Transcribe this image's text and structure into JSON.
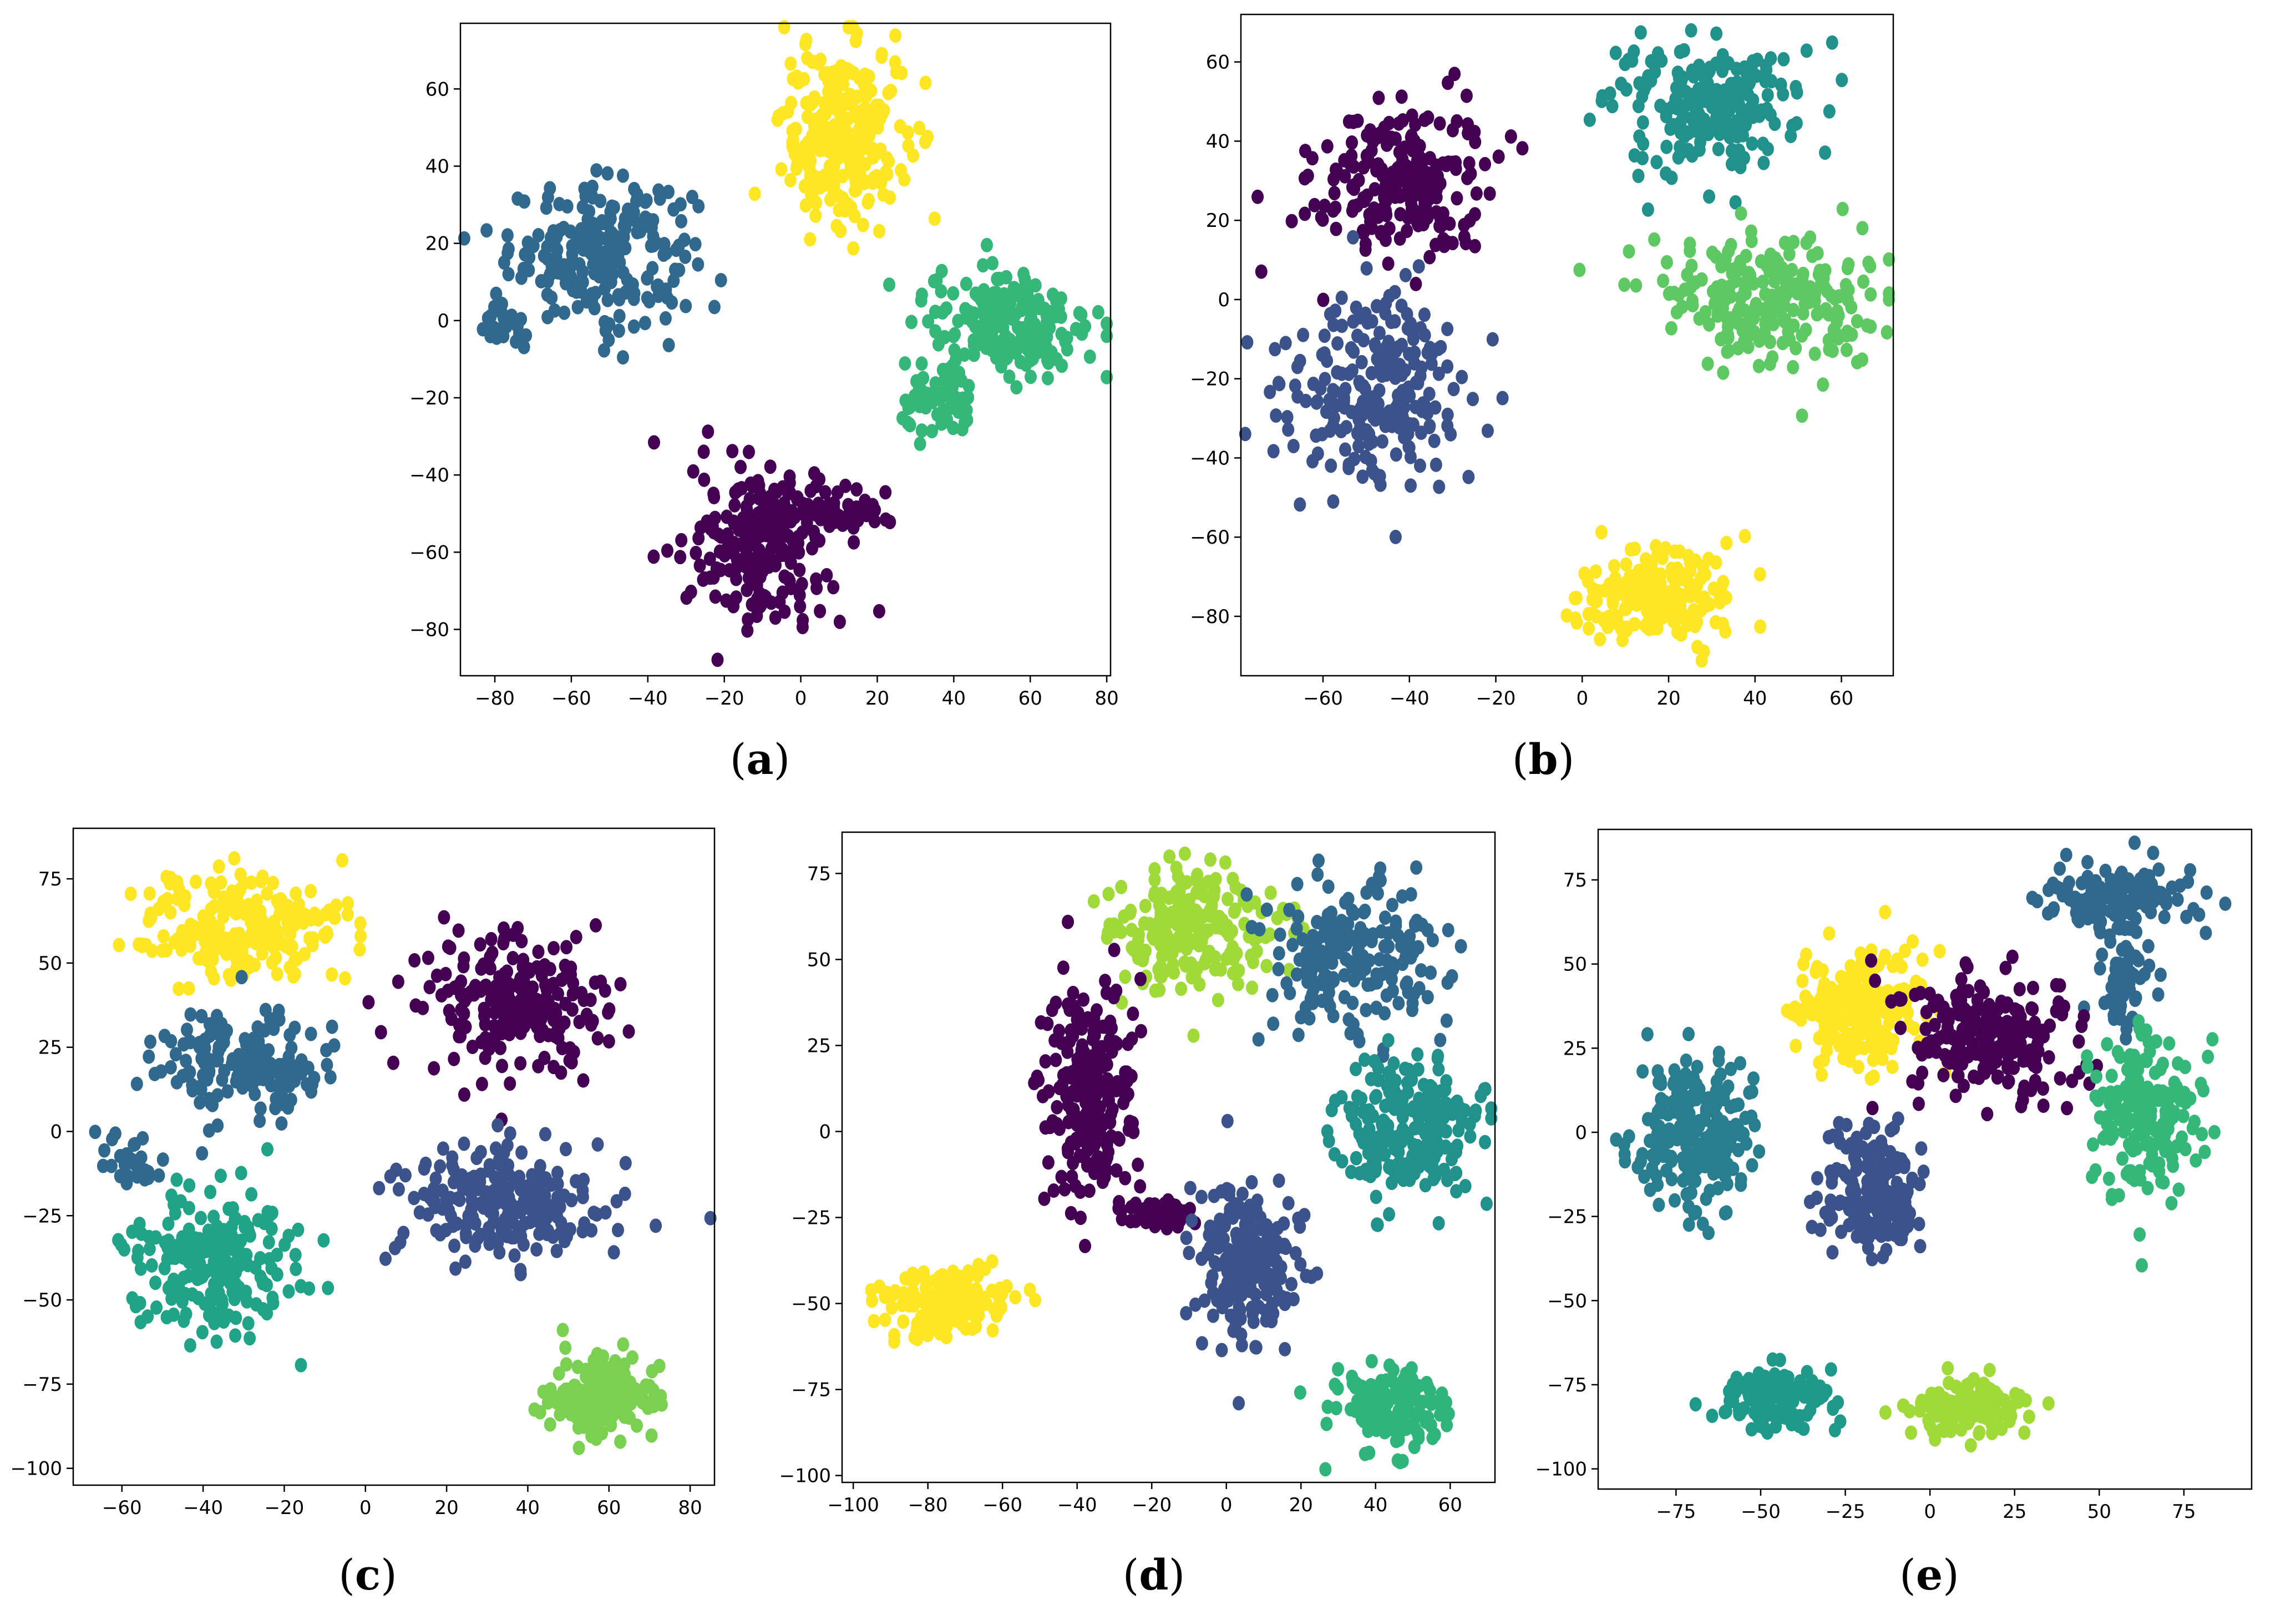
{
  "chart_data": [
    {
      "type": "scatter",
      "panel": "a",
      "caption": {
        "open": "(",
        "letter": "a",
        "close": ")"
      },
      "xlim": [
        -89,
        81
      ],
      "ylim": [
        -92,
        77
      ],
      "xticks": [
        -80,
        -60,
        -40,
        -20,
        0,
        20,
        40,
        60,
        80
      ],
      "yticks": [
        -80,
        -60,
        -40,
        -20,
        0,
        20,
        40,
        60
      ],
      "clusters": [
        {
          "label": "dark-teal",
          "color": "#31688e",
          "center": [
            -52,
            18
          ],
          "spread": [
            12,
            9
          ],
          "n": 230
        },
        {
          "label": "dark-teal-tail",
          "color": "#31688e",
          "center": [
            -78,
            -2
          ],
          "spread": [
            3,
            3
          ],
          "n": 25
        },
        {
          "label": "yellow",
          "color": "#fde725",
          "center": [
            11,
            48
          ],
          "spread": [
            8,
            12
          ],
          "n": 260
        },
        {
          "label": "green",
          "color": "#35b779",
          "center": [
            55,
            0
          ],
          "spread": [
            11,
            7
          ],
          "n": 200
        },
        {
          "label": "green-lower",
          "color": "#35b779",
          "center": [
            36,
            -22
          ],
          "spread": [
            5,
            5
          ],
          "n": 70
        },
        {
          "label": "purple",
          "color": "#440154",
          "center": [
            -10,
            -58
          ],
          "spread": [
            9,
            10
          ],
          "n": 230
        },
        {
          "label": "purple-arm",
          "color": "#440154",
          "center": [
            12,
            -49
          ],
          "spread": [
            6,
            3
          ],
          "n": 50
        }
      ]
    },
    {
      "type": "scatter",
      "panel": "b",
      "caption": {
        "open": "(",
        "letter": "b",
        "close": ")"
      },
      "xlim": [
        -79,
        72
      ],
      "ylim": [
        -95,
        72
      ],
      "xticks": [
        -60,
        -40,
        -20,
        0,
        20,
        40,
        60
      ],
      "yticks": [
        -80,
        -60,
        -40,
        -20,
        0,
        20,
        40,
        60
      ],
      "clusters": [
        {
          "label": "purple",
          "color": "#440154",
          "center": [
            -42,
            30
          ],
          "spread": [
            10,
            10
          ],
          "n": 220
        },
        {
          "label": "indigo",
          "color": "#3b528b",
          "center": [
            -48,
            -22
          ],
          "spread": [
            11,
            12
          ],
          "n": 230
        },
        {
          "label": "teal",
          "color": "#21918c",
          "center": [
            28,
            48
          ],
          "spread": [
            11,
            8
          ],
          "n": 220
        },
        {
          "label": "light-green",
          "color": "#5ec962",
          "center": [
            42,
            0
          ],
          "spread": [
            13,
            8
          ],
          "n": 240
        },
        {
          "label": "yellow",
          "color": "#fde725",
          "center": [
            18,
            -75
          ],
          "spread": [
            10,
            6
          ],
          "n": 190
        }
      ]
    },
    {
      "type": "scatter",
      "panel": "c",
      "caption": {
        "open": "(",
        "letter": "c",
        "close": ")"
      },
      "xlim": [
        -72,
        86
      ],
      "ylim": [
        -105,
        90
      ],
      "xticks": [
        -60,
        -40,
        -20,
        0,
        20,
        40,
        60,
        80
      ],
      "yticks": [
        -100,
        -75,
        -50,
        -25,
        0,
        25,
        50,
        75
      ],
      "clusters": [
        {
          "label": "yellow",
          "color": "#fde725",
          "center": [
            -30,
            60
          ],
          "spread": [
            13,
            8
          ],
          "n": 230
        },
        {
          "label": "dark-teal",
          "color": "#31688e",
          "center": [
            -30,
            20
          ],
          "spread": [
            10,
            8
          ],
          "n": 170
        },
        {
          "label": "dark-teal-left",
          "color": "#31688e",
          "center": [
            -58,
            -8
          ],
          "spread": [
            4,
            4
          ],
          "n": 30
        },
        {
          "label": "purple",
          "color": "#440154",
          "center": [
            35,
            38
          ],
          "spread": [
            12,
            10
          ],
          "n": 220
        },
        {
          "label": "indigo",
          "color": "#3b528b",
          "center": [
            35,
            -22
          ],
          "spread": [
            13,
            9
          ],
          "n": 220
        },
        {
          "label": "green",
          "color": "#20a386",
          "center": [
            -38,
            -38
          ],
          "spread": [
            10,
            10
          ],
          "n": 220
        },
        {
          "label": "light-green",
          "color": "#7ad151",
          "center": [
            58,
            -78
          ],
          "spread": [
            7,
            6
          ],
          "n": 180
        }
      ]
    },
    {
      "type": "scatter",
      "panel": "d",
      "caption": {
        "open": "(",
        "letter": "d",
        "close": ")"
      },
      "xlim": [
        -103,
        72
      ],
      "ylim": [
        -102,
        87
      ],
      "xticks": [
        -100,
        -80,
        -60,
        -40,
        -20,
        0,
        20,
        40,
        60
      ],
      "yticks": [
        -100,
        -75,
        -50,
        -25,
        0,
        25,
        50,
        75
      ],
      "clusters": [
        {
          "label": "lime",
          "color": "#a0da39",
          "center": [
            -10,
            58
          ],
          "spread": [
            11,
            9
          ],
          "n": 220
        },
        {
          "label": "dark-teal",
          "color": "#31688e",
          "center": [
            35,
            50
          ],
          "spread": [
            12,
            12
          ],
          "n": 190
        },
        {
          "label": "purple",
          "color": "#440154",
          "center": [
            -37,
            10
          ],
          "spread": [
            6,
            16
          ],
          "n": 230
        },
        {
          "label": "purple-arm",
          "color": "#440154",
          "center": [
            -20,
            -24
          ],
          "spread": [
            6,
            3
          ],
          "n": 40
        },
        {
          "label": "teal",
          "color": "#21918c",
          "center": [
            48,
            0
          ],
          "spread": [
            10,
            10
          ],
          "n": 230
        },
        {
          "label": "indigo",
          "color": "#3b528b",
          "center": [
            5,
            -38
          ],
          "spread": [
            7,
            11
          ],
          "n": 210
        },
        {
          "label": "yellow",
          "color": "#fde725",
          "center": [
            -75,
            -50
          ],
          "spread": [
            9,
            5
          ],
          "n": 170
        },
        {
          "label": "green",
          "color": "#2fb47c",
          "center": [
            45,
            -80
          ],
          "spread": [
            7,
            6
          ],
          "n": 170
        }
      ]
    },
    {
      "type": "scatter",
      "panel": "e",
      "caption": {
        "open": "(",
        "letter": "e",
        "close": ")"
      },
      "xlim": [
        -98,
        95
      ],
      "ylim": [
        -106,
        90
      ],
      "xticks": [
        -75,
        -50,
        -25,
        0,
        25,
        50,
        75
      ],
      "yticks": [
        -100,
        -75,
        -50,
        -25,
        0,
        25,
        50,
        75
      ],
      "clusters": [
        {
          "label": "blue-teal",
          "color": "#31688e",
          "center": [
            55,
            70
          ],
          "spread": [
            11,
            5
          ],
          "n": 150
        },
        {
          "label": "blue-teal-stem",
          "color": "#31688e",
          "center": [
            57,
            45
          ],
          "spread": [
            4,
            9
          ],
          "n": 60
        },
        {
          "label": "yellow",
          "color": "#fde725",
          "center": [
            -22,
            37
          ],
          "spread": [
            9,
            9
          ],
          "n": 220
        },
        {
          "label": "purple",
          "color": "#440154",
          "center": [
            15,
            28
          ],
          "spread": [
            13,
            9
          ],
          "n": 220
        },
        {
          "label": "teal",
          "color": "#287d8e",
          "center": [
            -70,
            0
          ],
          "spread": [
            8,
            12
          ],
          "n": 230
        },
        {
          "label": "indigo",
          "color": "#3b528b",
          "center": [
            -15,
            -18
          ],
          "spread": [
            7,
            9
          ],
          "n": 190
        },
        {
          "label": "green",
          "color": "#35b779",
          "center": [
            62,
            5
          ],
          "spread": [
            8,
            12
          ],
          "n": 200
        },
        {
          "label": "teal-bottom",
          "color": "#1f9a8a",
          "center": [
            -45,
            -80
          ],
          "spread": [
            8,
            4
          ],
          "n": 150
        },
        {
          "label": "lime-bottom",
          "color": "#a0da39",
          "center": [
            10,
            -82
          ],
          "spread": [
            9,
            4
          ],
          "n": 130
        }
      ]
    }
  ]
}
